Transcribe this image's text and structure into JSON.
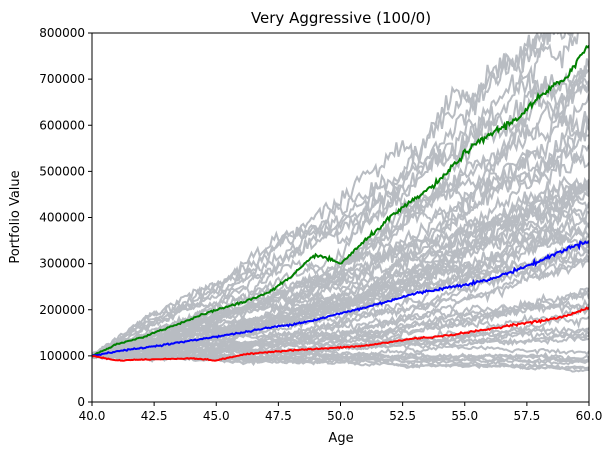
{
  "chart_data": {
    "type": "line",
    "title": "Very Aggressive (100/0)",
    "xlabel": "Age",
    "ylabel": "Portfolio Value",
    "xlim": [
      40,
      60
    ],
    "ylim": [
      0,
      800000
    ],
    "x_ticks": [
      "40.0",
      "42.5",
      "45.0",
      "47.5",
      "50.0",
      "52.5",
      "55.0",
      "57.5",
      "60.0"
    ],
    "y_ticks": [
      "0",
      "100000",
      "200000",
      "300000",
      "400000",
      "500000",
      "600000",
      "700000",
      "800000"
    ],
    "grid": false,
    "legend": false,
    "background_series": {
      "color": "#b8bcc2",
      "count": 60,
      "start_value": 100000,
      "end_values": [
        75000,
        85000,
        95000,
        110000,
        120000,
        140000,
        160000,
        180000,
        200000,
        220000,
        240000,
        260000,
        280000,
        300000,
        320000,
        340000,
        360000,
        380000,
        400000,
        420000,
        440000,
        460000,
        480000,
        500000,
        520000,
        540000,
        560000,
        580000,
        600000,
        620000,
        650000,
        680000,
        710000,
        750000,
        800000,
        850000,
        900000
      ]
    },
    "series": [
      {
        "color": "#008000",
        "x": [
          40,
          41,
          42,
          43,
          44,
          45,
          46,
          47,
          48,
          49,
          50,
          51,
          52,
          53,
          54,
          55,
          56,
          57,
          58,
          59,
          60
        ],
        "values": [
          100000,
          125000,
          140000,
          160000,
          180000,
          200000,
          215000,
          235000,
          270000,
          320000,
          300000,
          350000,
          400000,
          440000,
          480000,
          540000,
          580000,
          610000,
          660000,
          700000,
          775000
        ]
      },
      {
        "color": "#0000ff",
        "x": [
          40,
          41,
          42,
          43,
          44,
          45,
          46,
          47,
          48,
          49,
          50,
          51,
          52,
          53,
          54,
          55,
          56,
          57,
          58,
          59,
          60
        ],
        "values": [
          100000,
          110000,
          117000,
          125000,
          133000,
          142000,
          150000,
          160000,
          168000,
          178000,
          192000,
          205000,
          220000,
          235000,
          245000,
          255000,
          265000,
          285000,
          305000,
          330000,
          350000
        ]
      },
      {
        "color": "#ff0000",
        "x": [
          40,
          41,
          42,
          43,
          44,
          45,
          46,
          47,
          48,
          49,
          50,
          51,
          52,
          53,
          54,
          55,
          56,
          57,
          58,
          59,
          60
        ],
        "values": [
          100000,
          90000,
          92000,
          93000,
          95000,
          90000,
          102000,
          108000,
          112000,
          115000,
          118000,
          122000,
          130000,
          138000,
          142000,
          150000,
          158000,
          168000,
          175000,
          185000,
          205000
        ]
      }
    ]
  }
}
